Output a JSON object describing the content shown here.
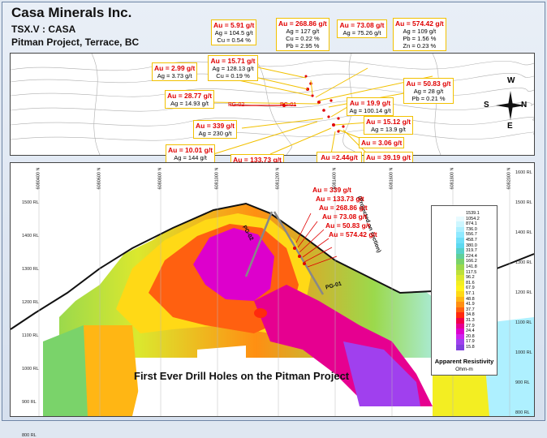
{
  "header": {
    "company": "Casa Minerals Inc.",
    "ticker": "TSX.V : CASA",
    "project": "Pitman Project, Terrace, BC"
  },
  "plan_map": {
    "holes": [
      "PG-02",
      "PG-01"
    ],
    "compass": [
      "N",
      "S",
      "E",
      "W"
    ],
    "callouts": [
      {
        "au": "Au = 5.91 g/t",
        "lines": [
          "Ag = 104.5 g/t",
          "Cu = 0.54 %"
        ]
      },
      {
        "au": "Au = 268.86 g/t",
        "lines": [
          "Ag = 127 g/t",
          "Cu = 0.22 %",
          "Pb = 2.95 %"
        ]
      },
      {
        "au": "Au = 73.08 g/t",
        "lines": [
          "Ag = 75.26 g/t"
        ]
      },
      {
        "au": "Au = 574.42 g/t",
        "lines": [
          "Ag = 109 g/t",
          "Pb = 1.56 %",
          "Zn = 0.23 %"
        ]
      },
      {
        "au": "Au = 15.71 g/t",
        "lines": [
          "Ag = 128.13 g/t",
          "Cu = 0.19 %"
        ]
      },
      {
        "au": "Au = 2.99 g/t",
        "lines": [
          "Ag = 3.73 g/t"
        ]
      },
      {
        "au": "Au = 50.83 g/t",
        "lines": [
          "Ag = 28 g/t",
          "Pb = 0.21 %"
        ]
      },
      {
        "au": "Au = 28.77 g/t",
        "lines": [
          "Ag = 14.93 g/t"
        ]
      },
      {
        "au": "Au = 19.9 g/t",
        "lines": [
          "Ag = 100.14 g/t"
        ]
      },
      {
        "au": "Au = 339 g/t",
        "lines": [
          "Ag = 230 g/t"
        ]
      },
      {
        "au": "Au = 15.12 g/t",
        "lines": [
          "Ag = 13.9 g/t"
        ]
      },
      {
        "au": "Au = 3.06 g/t",
        "lines": []
      },
      {
        "au": "Au = 10.01 g/t",
        "lines": [
          "Ag = 144 g/t",
          "Cu = 0.63 %"
        ]
      },
      {
        "au": "Au = 133.73 g/t",
        "lines": [
          "Ag = 72.15 g/t"
        ]
      },
      {
        "au": "Au =2.44g/t",
        "lines": [
          "Ag = 92 g/t",
          "Cu = 0.27 %",
          "Pb = 4.54 %"
        ]
      },
      {
        "au": "Au = 39.19 g/t",
        "lines": [
          "Ag = 95.25 g/t",
          "Cu = 0.46 %"
        ]
      }
    ]
  },
  "section": {
    "rl_left": [
      "1500 RL",
      "1400 RL",
      "1300 RL",
      "1200 RL",
      "1100 RL",
      "1000 RL",
      "900 RL",
      "800 RL"
    ],
    "rl_right": [
      "1600 RL",
      "1500 RL",
      "1400 RL",
      "1300 RL",
      "1200 RL",
      "1100 RL",
      "1000 RL",
      "900 RL",
      "800 RL"
    ],
    "northing_labels": [
      "6080400 N",
      "6080600 N",
      "6080800 N",
      "6081000 N",
      "6081200 N",
      "6081400 N",
      "6081600 N",
      "6081800 N",
      "6082000 N"
    ],
    "holes": [
      "PG-02",
      "PG-01"
    ],
    "projection_note": "(Projected on section)",
    "assays": [
      "Au = 339 g/t",
      "Au = 133.73 g/t",
      "Au = 268.86 g/t",
      "Au = 73.08 g/t",
      "Au = 50.83 g/t",
      "Au = 574.42 g/t"
    ],
    "caption": "First Ever Drill Holes on the Pitman Project"
  },
  "legend": {
    "title": "Apparent Resistivity",
    "unit": "Ohm-m",
    "values": [
      "1539.1",
      "1054.2",
      "874.1",
      "736.0",
      "556.7",
      "458.7",
      "380.0",
      "319.7",
      "224.4",
      "166.2",
      "141.8",
      "117.5",
      "96.2",
      "81.6",
      "67.9",
      "57.1",
      "48.8",
      "41.9",
      "37.7",
      "34.8",
      "31.3",
      "27.9",
      "24.4",
      "20.8",
      "17.9",
      "15.8"
    ],
    "colors": [
      "#ffffff",
      "#e8fbff",
      "#cdf6ff",
      "#aef0ff",
      "#8fe9ff",
      "#70e0f8",
      "#5dd8f0",
      "#58d2c8",
      "#5fcf9a",
      "#7ad36a",
      "#9bd94c",
      "#bde03a",
      "#dbe82e",
      "#f3ee22",
      "#fff21a",
      "#ffd916",
      "#ffb614",
      "#ff8f12",
      "#ff6010",
      "#ff2a0e",
      "#f2004a",
      "#e60090",
      "#dd00cc",
      "#cc22ee",
      "#a040ee",
      "#8040dd"
    ]
  }
}
